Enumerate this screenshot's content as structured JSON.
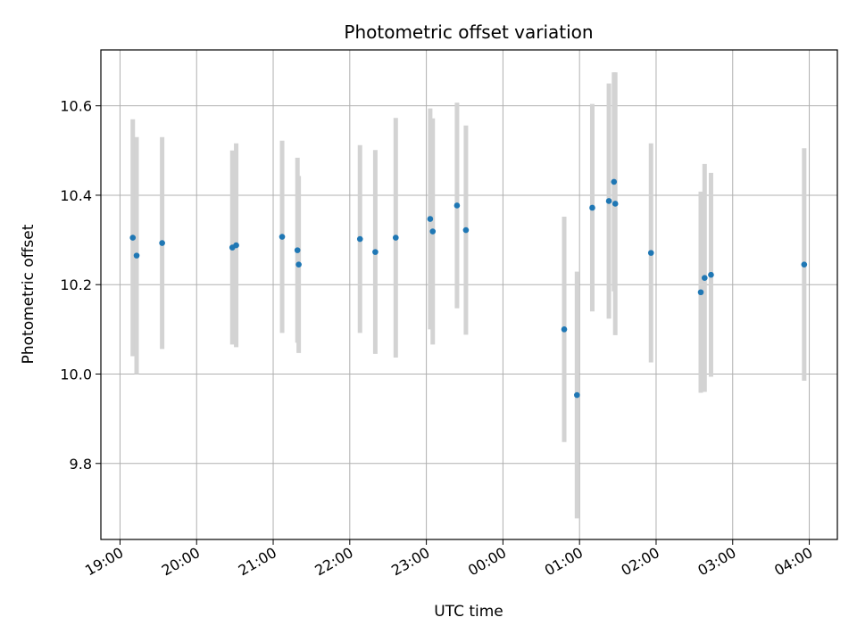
{
  "chart_data": {
    "type": "scatter",
    "title": "Photometric offset variation",
    "xlabel": "UTC time",
    "ylabel": "Photometric offset",
    "x_ticks": [
      "19:00",
      "20:00",
      "21:00",
      "22:00",
      "23:00",
      "00:00",
      "01:00",
      "02:00",
      "03:00",
      "04:00"
    ],
    "y_ticks": [
      "9.8",
      "10.0",
      "10.2",
      "10.4",
      "10.6"
    ],
    "ylim": [
      9.63,
      10.725
    ],
    "xlim": [
      "18:45",
      "04:22"
    ],
    "grid": true,
    "point_color": "#1f77b4",
    "errorbar_color": "#d3d3d3",
    "points": [
      {
        "time": "19:10",
        "y": 10.305,
        "err": 0.265
      },
      {
        "time": "19:13",
        "y": 10.265,
        "err": 0.265
      },
      {
        "time": "19:33",
        "y": 10.293,
        "err": 0.237
      },
      {
        "time": "20:28",
        "y": 10.283,
        "err": 0.217
      },
      {
        "time": "20:31",
        "y": 10.288,
        "err": 0.228
      },
      {
        "time": "21:07",
        "y": 10.307,
        "err": 0.215
      },
      {
        "time": "21:19",
        "y": 10.277,
        "err": 0.207
      },
      {
        "time": "21:20",
        "y": 10.245,
        "err": 0.198
      },
      {
        "time": "22:08",
        "y": 10.302,
        "err": 0.21
      },
      {
        "time": "22:20",
        "y": 10.273,
        "err": 0.228
      },
      {
        "time": "22:36",
        "y": 10.305,
        "err": 0.268
      },
      {
        "time": "23:03",
        "y": 10.347,
        "err": 0.247
      },
      {
        "time": "23:05",
        "y": 10.319,
        "err": 0.253
      },
      {
        "time": "23:24",
        "y": 10.377,
        "err": 0.23
      },
      {
        "time": "23:31",
        "y": 10.322,
        "err": 0.234
      },
      {
        "time": "00:48",
        "y": 10.1,
        "err": 0.252
      },
      {
        "time": "00:58",
        "y": 9.953,
        "err": 0.276
      },
      {
        "time": "01:10",
        "y": 10.372,
        "err": 0.232
      },
      {
        "time": "01:23",
        "y": 10.387,
        "err": 0.263
      },
      {
        "time": "01:27",
        "y": 10.43,
        "err": 0.245
      },
      {
        "time": "01:28",
        "y": 10.381,
        "err": 0.294
      },
      {
        "time": "01:56",
        "y": 10.271,
        "err": 0.245
      },
      {
        "time": "02:35",
        "y": 10.183,
        "err": 0.225
      },
      {
        "time": "02:38",
        "y": 10.215,
        "err": 0.255
      },
      {
        "time": "02:43",
        "y": 10.222,
        "err": 0.228
      },
      {
        "time": "03:56",
        "y": 10.245,
        "err": 0.26
      }
    ]
  }
}
